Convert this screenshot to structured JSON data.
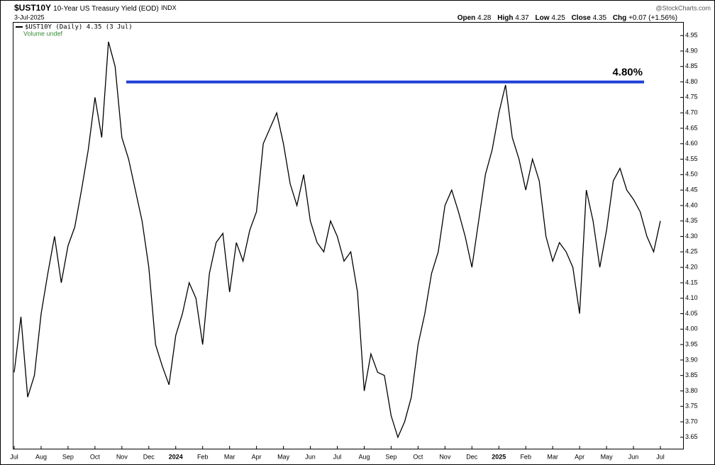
{
  "header": {
    "symbol": "$UST10Y",
    "name": "10-Year US Treasury Yield (EOD)",
    "exchange": "INDX",
    "date": "3-Jul-2025",
    "open_label": "Open",
    "open": "4.28",
    "high_label": "High",
    "high": "4.37",
    "low_label": "Low",
    "low": "4.25",
    "close_label": "Close",
    "close": "4.35",
    "chg_label": "Chg",
    "chg": "+0.07 (+1.56%)",
    "brand": "@StockCharts.com",
    "volume": "Volume undef"
  },
  "chart_data": {
    "type": "line",
    "categories": [
      "Jul",
      null,
      null,
      null,
      "Aug",
      null,
      null,
      null,
      "Sep",
      null,
      null,
      null,
      "Oct",
      null,
      null,
      null,
      "Nov",
      null,
      null,
      null,
      "Dec",
      null,
      null,
      null,
      "2024",
      null,
      null,
      null,
      "Feb",
      null,
      null,
      null,
      "Mar",
      null,
      null,
      null,
      "Apr",
      null,
      null,
      null,
      "May",
      null,
      null,
      null,
      "Jun",
      null,
      null,
      null,
      "Jul",
      null,
      null,
      null,
      "Aug",
      null,
      null,
      null,
      "Sep",
      null,
      null,
      null,
      "Oct",
      null,
      null,
      null,
      "Nov",
      null,
      null,
      null,
      "Dec",
      null,
      null,
      null,
      "2025",
      null,
      null,
      null,
      "Feb",
      null,
      null,
      null,
      "Mar",
      null,
      null,
      null,
      "Apr",
      null,
      null,
      null,
      "May",
      null,
      null,
      null,
      "Jun",
      null,
      null,
      null,
      "Jul"
    ],
    "series": [
      {
        "name": "$UST10Y (Daily) 4.35 (3 Jul)",
        "color": "#000000",
        "values": [
          3.86,
          4.04,
          3.78,
          3.85,
          4.05,
          4.18,
          4.3,
          4.15,
          4.27,
          4.33,
          4.45,
          4.58,
          4.75,
          4.62,
          4.93,
          4.85,
          4.62,
          4.55,
          4.45,
          4.35,
          4.2,
          3.95,
          3.88,
          3.82,
          3.98,
          4.05,
          4.15,
          4.1,
          3.95,
          4.18,
          4.28,
          4.31,
          4.12,
          4.28,
          4.22,
          4.32,
          4.38,
          4.6,
          4.65,
          4.7,
          4.6,
          4.47,
          4.4,
          4.5,
          4.35,
          4.28,
          4.25,
          4.35,
          4.3,
          4.22,
          4.25,
          4.12,
          3.8,
          3.92,
          3.86,
          3.85,
          3.72,
          3.65,
          3.7,
          3.78,
          3.95,
          4.05,
          4.18,
          4.25,
          4.4,
          4.45,
          4.38,
          4.3,
          4.2,
          4.35,
          4.5,
          4.58,
          4.7,
          4.79,
          4.62,
          4.55,
          4.45,
          4.55,
          4.48,
          4.3,
          4.22,
          4.28,
          4.25,
          4.2,
          4.05,
          4.45,
          4.35,
          4.2,
          4.32,
          4.48,
          4.52,
          4.45,
          4.42,
          4.38,
          4.3,
          4.25,
          4.35
        ]
      }
    ],
    "ylim": [
      3.613,
      4.994
    ],
    "yticks": [
      3.65,
      {
        "value": 3.7,
        "label": "3.70"
      },
      3.75,
      {
        "value": 3.8,
        "label": "3.80"
      },
      3.85,
      {
        "value": 3.9,
        "label": "3.90"
      },
      3.95,
      {
        "value": 4,
        "label": "4.00"
      },
      4.05,
      {
        "value": 4.1,
        "label": "4.10"
      },
      4.15,
      {
        "value": 4.2,
        "label": "4.20"
      },
      4.25,
      {
        "value": 4.3,
        "label": "4.30"
      },
      4.35,
      {
        "value": 4.4,
        "label": "4.40"
      },
      4.45,
      {
        "value": 4.5,
        "label": "4.50"
      },
      4.55,
      {
        "value": 4.6,
        "label": "4.60"
      },
      4.65,
      {
        "value": 4.7,
        "label": "4.70"
      },
      4.75,
      {
        "value": 4.8,
        "label": "4.80"
      },
      4.85,
      {
        "value": 4.9,
        "label": "4.90"
      },
      4.95
    ],
    "annotations": [
      {
        "value": 4.8,
        "label": "4.80%",
        "color": "#1f3fd6"
      }
    ],
    "grid": false
  }
}
